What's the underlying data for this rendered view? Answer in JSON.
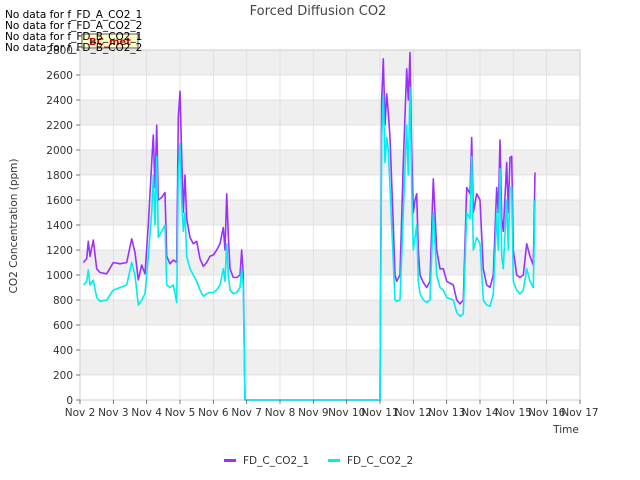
{
  "colors": {
    "series1": "#9b30ff",
    "series2": "#00eeee",
    "band": "#efefef",
    "grid": "#dddddd",
    "badge_bg": "#ffffcc",
    "badge_text": "#aa1111"
  },
  "nodata_notes": [
    "No data for f_FD_A_CO2_1",
    "No data for f_FD_A_CO2_2",
    "No data for f_FD_B_CO2_1",
    "No data for f_FD_B_CO2_2"
  ],
  "badge": "BC_met",
  "chart_data": {
    "type": "line",
    "title": "Forced Diffusion CO2",
    "xlabel": "Time",
    "ylabel": "CO2 Concentration (ppm)",
    "xlim": [
      2,
      17
    ],
    "ylim": [
      0,
      2800
    ],
    "xticks": [
      {
        "value": 2,
        "label": "Nov 2"
      },
      {
        "value": 3,
        "label": "Nov 3"
      },
      {
        "value": 4,
        "label": "Nov 4"
      },
      {
        "value": 5,
        "label": "Nov 5"
      },
      {
        "value": 6,
        "label": "Nov 6"
      },
      {
        "value": 7,
        "label": "Nov 7"
      },
      {
        "value": 8,
        "label": "Nov 8"
      },
      {
        "value": 9,
        "label": "Nov 9"
      },
      {
        "value": 10,
        "label": "Nov 10"
      },
      {
        "value": 11,
        "label": "Nov 11"
      },
      {
        "value": 12,
        "label": "Nov 12"
      },
      {
        "value": 13,
        "label": "Nov 13"
      },
      {
        "value": 14,
        "label": "Nov 14"
      },
      {
        "value": 15,
        "label": "Nov 15"
      },
      {
        "value": 16,
        "label": "Nov 16"
      },
      {
        "value": 17,
        "label": "Nov 17"
      }
    ],
    "yticks": [
      0,
      200,
      400,
      600,
      800,
      1000,
      1200,
      1400,
      1600,
      1800,
      2000,
      2200,
      2400,
      2600,
      2800
    ],
    "grid": true,
    "legend_position": "bottom",
    "series": [
      {
        "name": "FD_C_CO2_1",
        "color": "#9b30ff",
        "points": [
          [
            2.1,
            1100
          ],
          [
            2.2,
            1130
          ],
          [
            2.25,
            1270
          ],
          [
            2.3,
            1150
          ],
          [
            2.4,
            1280
          ],
          [
            2.5,
            1050
          ],
          [
            2.6,
            1020
          ],
          [
            2.8,
            1010
          ],
          [
            3.0,
            1100
          ],
          [
            3.2,
            1090
          ],
          [
            3.4,
            1100
          ],
          [
            3.55,
            1290
          ],
          [
            3.65,
            1180
          ],
          [
            3.75,
            960
          ],
          [
            3.85,
            1080
          ],
          [
            3.95,
            1010
          ],
          [
            4.05,
            1400
          ],
          [
            4.15,
            1900
          ],
          [
            4.2,
            2120
          ],
          [
            4.25,
            1700
          ],
          [
            4.3,
            2200
          ],
          [
            4.35,
            1600
          ],
          [
            4.45,
            1620
          ],
          [
            4.55,
            1660
          ],
          [
            4.6,
            1150
          ],
          [
            4.7,
            1090
          ],
          [
            4.8,
            1120
          ],
          [
            4.9,
            1100
          ],
          [
            4.95,
            2260
          ],
          [
            5.0,
            2470
          ],
          [
            5.05,
            1950
          ],
          [
            5.1,
            1500
          ],
          [
            5.15,
            1800
          ],
          [
            5.2,
            1450
          ],
          [
            5.3,
            1300
          ],
          [
            5.4,
            1250
          ],
          [
            5.5,
            1270
          ],
          [
            5.6,
            1130
          ],
          [
            5.7,
            1070
          ],
          [
            5.8,
            1100
          ],
          [
            5.9,
            1150
          ],
          [
            6.0,
            1160
          ],
          [
            6.1,
            1200
          ],
          [
            6.2,
            1250
          ],
          [
            6.3,
            1380
          ],
          [
            6.35,
            1200
          ],
          [
            6.4,
            1650
          ],
          [
            6.45,
            1320
          ],
          [
            6.5,
            1050
          ],
          [
            6.6,
            980
          ],
          [
            6.7,
            980
          ],
          [
            6.8,
            1000
          ],
          [
            6.85,
            1200
          ],
          [
            6.9,
            1000
          ],
          [
            6.95,
            0
          ],
          [
            11.0,
            0
          ],
          [
            11.05,
            2400
          ],
          [
            11.1,
            2730
          ],
          [
            11.15,
            2200
          ],
          [
            11.2,
            2450
          ],
          [
            11.25,
            2300
          ],
          [
            11.3,
            2100
          ],
          [
            11.4,
            1400
          ],
          [
            11.45,
            1000
          ],
          [
            11.5,
            950
          ],
          [
            11.6,
            1000
          ],
          [
            11.7,
            1900
          ],
          [
            11.8,
            2650
          ],
          [
            11.85,
            2400
          ],
          [
            11.9,
            2780
          ],
          [
            11.95,
            2000
          ],
          [
            12.0,
            1500
          ],
          [
            12.05,
            1600
          ],
          [
            12.1,
            1650
          ],
          [
            12.15,
            1200
          ],
          [
            12.2,
            1000
          ],
          [
            12.3,
            940
          ],
          [
            12.4,
            900
          ],
          [
            12.5,
            950
          ],
          [
            12.6,
            1770
          ],
          [
            12.7,
            1200
          ],
          [
            12.8,
            1050
          ],
          [
            12.9,
            1050
          ],
          [
            13.0,
            950
          ],
          [
            13.2,
            920
          ],
          [
            13.3,
            800
          ],
          [
            13.4,
            770
          ],
          [
            13.5,
            800
          ],
          [
            13.6,
            1700
          ],
          [
            13.7,
            1650
          ],
          [
            13.75,
            2100
          ],
          [
            13.8,
            1500
          ],
          [
            13.9,
            1650
          ],
          [
            14.0,
            1600
          ],
          [
            14.1,
            1050
          ],
          [
            14.2,
            920
          ],
          [
            14.3,
            900
          ],
          [
            14.4,
            1000
          ],
          [
            14.5,
            1700
          ],
          [
            14.55,
            1500
          ],
          [
            14.6,
            2080
          ],
          [
            14.65,
            1450
          ],
          [
            14.7,
            1350
          ],
          [
            14.8,
            1900
          ],
          [
            14.85,
            1500
          ],
          [
            14.9,
            1940
          ],
          [
            14.95,
            1950
          ],
          [
            15.0,
            1200
          ],
          [
            15.1,
            1000
          ],
          [
            15.2,
            980
          ],
          [
            15.3,
            1000
          ],
          [
            15.4,
            1250
          ],
          [
            15.5,
            1150
          ],
          [
            15.6,
            1080
          ],
          [
            15.65,
            1820
          ]
        ]
      },
      {
        "name": "FD_C_CO2_2",
        "color": "#00eeee",
        "points": [
          [
            2.1,
            920
          ],
          [
            2.2,
            950
          ],
          [
            2.25,
            1040
          ],
          [
            2.3,
            920
          ],
          [
            2.4,
            960
          ],
          [
            2.5,
            820
          ],
          [
            2.6,
            790
          ],
          [
            2.8,
            800
          ],
          [
            3.0,
            880
          ],
          [
            3.2,
            900
          ],
          [
            3.4,
            920
          ],
          [
            3.55,
            1100
          ],
          [
            3.65,
            1000
          ],
          [
            3.75,
            760
          ],
          [
            3.85,
            800
          ],
          [
            3.95,
            850
          ],
          [
            4.05,
            1150
          ],
          [
            4.15,
            1500
          ],
          [
            4.2,
            1800
          ],
          [
            4.25,
            1400
          ],
          [
            4.3,
            1950
          ],
          [
            4.35,
            1300
          ],
          [
            4.45,
            1350
          ],
          [
            4.55,
            1400
          ],
          [
            4.6,
            920
          ],
          [
            4.7,
            900
          ],
          [
            4.8,
            920
          ],
          [
            4.9,
            780
          ],
          [
            4.95,
            1800
          ],
          [
            5.0,
            2050
          ],
          [
            5.05,
            1600
          ],
          [
            5.1,
            1350
          ],
          [
            5.15,
            1500
          ],
          [
            5.2,
            1150
          ],
          [
            5.3,
            1050
          ],
          [
            5.4,
            1000
          ],
          [
            5.5,
            950
          ],
          [
            5.6,
            880
          ],
          [
            5.7,
            830
          ],
          [
            5.8,
            850
          ],
          [
            5.9,
            860
          ],
          [
            6.0,
            860
          ],
          [
            6.1,
            880
          ],
          [
            6.2,
            920
          ],
          [
            6.3,
            1050
          ],
          [
            6.35,
            950
          ],
          [
            6.4,
            1250
          ],
          [
            6.45,
            1000
          ],
          [
            6.5,
            880
          ],
          [
            6.6,
            850
          ],
          [
            6.7,
            860
          ],
          [
            6.8,
            900
          ],
          [
            6.85,
            1050
          ],
          [
            6.9,
            900
          ],
          [
            6.95,
            0
          ],
          [
            11.0,
            0
          ],
          [
            11.05,
            2100
          ],
          [
            11.1,
            2450
          ],
          [
            11.15,
            1900
          ],
          [
            11.2,
            2100
          ],
          [
            11.25,
            2000
          ],
          [
            11.3,
            1700
          ],
          [
            11.4,
            1100
          ],
          [
            11.45,
            800
          ],
          [
            11.5,
            790
          ],
          [
            11.6,
            800
          ],
          [
            11.7,
            1500
          ],
          [
            11.8,
            2200
          ],
          [
            11.85,
            1800
          ],
          [
            11.9,
            2500
          ],
          [
            11.95,
            1700
          ],
          [
            12.0,
            1200
          ],
          [
            12.05,
            1300
          ],
          [
            12.1,
            1400
          ],
          [
            12.15,
            950
          ],
          [
            12.2,
            850
          ],
          [
            12.3,
            800
          ],
          [
            12.4,
            780
          ],
          [
            12.5,
            800
          ],
          [
            12.6,
            1500
          ],
          [
            12.7,
            1000
          ],
          [
            12.8,
            900
          ],
          [
            12.9,
            880
          ],
          [
            13.0,
            820
          ],
          [
            13.2,
            800
          ],
          [
            13.3,
            700
          ],
          [
            13.4,
            670
          ],
          [
            13.5,
            690
          ],
          [
            13.6,
            1500
          ],
          [
            13.7,
            1450
          ],
          [
            13.75,
            1950
          ],
          [
            13.8,
            1200
          ],
          [
            13.9,
            1300
          ],
          [
            14.0,
            1250
          ],
          [
            14.1,
            800
          ],
          [
            14.2,
            760
          ],
          [
            14.3,
            750
          ],
          [
            14.4,
            850
          ],
          [
            14.5,
            1500
          ],
          [
            14.55,
            1200
          ],
          [
            14.6,
            1850
          ],
          [
            14.65,
            1150
          ],
          [
            14.7,
            1050
          ],
          [
            14.8,
            1600
          ],
          [
            14.85,
            1200
          ],
          [
            14.9,
            1700
          ],
          [
            14.95,
            1700
          ],
          [
            15.0,
            950
          ],
          [
            15.1,
            880
          ],
          [
            15.2,
            850
          ],
          [
            15.3,
            880
          ],
          [
            15.4,
            1050
          ],
          [
            15.5,
            950
          ],
          [
            15.6,
            900
          ],
          [
            15.65,
            1600
          ]
        ]
      }
    ]
  }
}
